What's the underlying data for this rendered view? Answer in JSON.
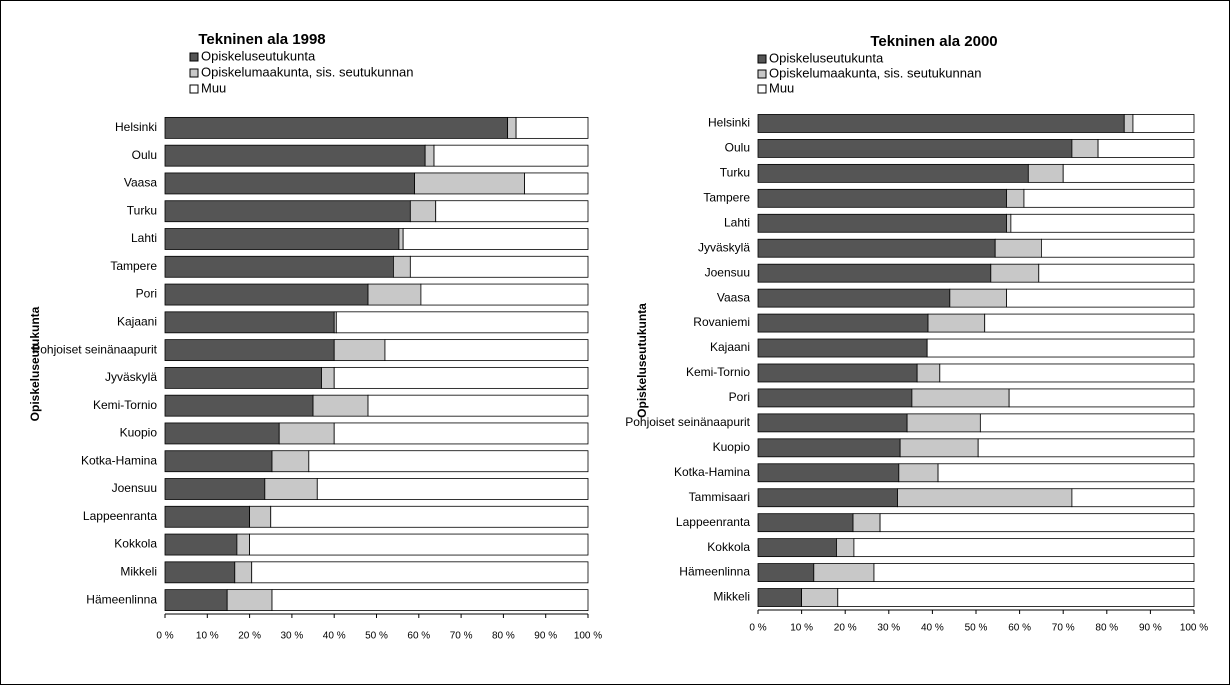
{
  "chart_data": [
    {
      "type": "stacked_barh",
      "title": "Tekninen ala 1998",
      "y_label": "Opiskeluseutukunta",
      "categories": [
        "Helsinki",
        "Oulu",
        "Vaasa",
        "Turku",
        "Lahti",
        "Tampere",
        "Pori",
        "Kajaani",
        "Pohjoiset seinänaapurit",
        "Jyväskylä",
        "Kemi-Tornio",
        "Kuopio",
        "Kotka-Hamina",
        "Joensuu",
        "Lappeenranta",
        "Kokkola",
        "Mikkeli",
        "Hämeenlinna"
      ],
      "series": [
        {
          "name": "Opiskeluseutukunta",
          "color": "#555555",
          "values": [
            81,
            61.5,
            59,
            58,
            55.3,
            54,
            48,
            40,
            40,
            37,
            35,
            27,
            25.3,
            23.6,
            20,
            17,
            16.5,
            14.7
          ]
        },
        {
          "name": "Opiskelumaakunta, sis. seutukunnan",
          "color": "#c8c8c8",
          "values": [
            2,
            2.1,
            26,
            6,
            1,
            4,
            12.5,
            0.5,
            12,
            3,
            13,
            13,
            8.7,
            12.4,
            5,
            3,
            4,
            10.6
          ]
        },
        {
          "name": "Muu",
          "color": "#ffffff",
          "values": [
            17,
            36.4,
            15,
            36,
            43.7,
            42,
            39.5,
            59.5,
            48,
            60,
            52,
            60,
            66,
            64,
            75,
            80,
            79.5,
            74.7
          ]
        }
      ],
      "xlim": [
        0,
        100
      ],
      "xticks": [
        {
          "value": 0,
          "label": "0 %"
        },
        {
          "value": 10,
          "label": "10 %"
        },
        {
          "value": 20,
          "label": "20 %"
        },
        {
          "value": 30,
          "label": "30 %"
        },
        {
          "value": 40,
          "label": "40 %"
        },
        {
          "value": 50,
          "label": "50 %"
        },
        {
          "value": 60,
          "label": "60 %"
        },
        {
          "value": 70,
          "label": "70 %"
        },
        {
          "value": 80,
          "label": "80 %"
        },
        {
          "value": 90,
          "label": "90 %"
        },
        {
          "value": 100,
          "label": "100 %"
        }
      ]
    },
    {
      "type": "stacked_barh",
      "title": "Tekninen ala 2000",
      "y_label": "Opiskeluseutukunta",
      "categories": [
        "Helsinki",
        "Oulu",
        "Turku",
        "Tampere",
        "Lahti",
        "Jyväskylä",
        "Joensuu",
        "Vaasa",
        "Rovaniemi",
        "Kajaani",
        "Kemi-Tornio",
        "Pori",
        "Pohjoiset seinänaapurit",
        "Kuopio",
        "Kotka-Hamina",
        "Tammisaari",
        "Lappeenranta",
        "Kokkola",
        "Hämeenlinna",
        "Mikkeli"
      ],
      "series": [
        {
          "name": "Opiskeluseutukunta",
          "color": "#555555",
          "values": [
            84,
            72,
            62,
            57,
            57,
            54.4,
            53.4,
            44,
            39,
            38.8,
            36.5,
            35.3,
            34.2,
            32.6,
            32.3,
            32,
            21.8,
            18,
            12.8,
            10
          ]
        },
        {
          "name": "Opiskelumaakunta, sis. seutukunnan",
          "color": "#c8c8c8",
          "values": [
            2,
            6,
            8,
            4,
            1,
            10.6,
            11,
            13,
            13,
            0,
            5.2,
            22.3,
            16.8,
            17.9,
            9,
            40,
            6.2,
            4,
            13.8,
            8.3
          ]
        },
        {
          "name": "Muu",
          "color": "#ffffff",
          "values": [
            14,
            22,
            30,
            39,
            42,
            35,
            35.6,
            43,
            48,
            61.2,
            58.3,
            42.4,
            49,
            49.5,
            58.7,
            28,
            72,
            78,
            73.4,
            81.7
          ]
        }
      ],
      "xlim": [
        0,
        100
      ],
      "xticks": [
        {
          "value": 0,
          "label": "0 %"
        },
        {
          "value": 10,
          "label": "10 %"
        },
        {
          "value": 20,
          "label": "20 %"
        },
        {
          "value": 30,
          "label": "30 %"
        },
        {
          "value": 40,
          "label": "40 %"
        },
        {
          "value": 50,
          "label": "50 %"
        },
        {
          "value": 60,
          "label": "60 %"
        },
        {
          "value": 70,
          "label": "70 %"
        },
        {
          "value": 80,
          "label": "80 %"
        },
        {
          "value": 90,
          "label": "90 %"
        },
        {
          "value": 100,
          "label": "100 %"
        }
      ]
    }
  ]
}
